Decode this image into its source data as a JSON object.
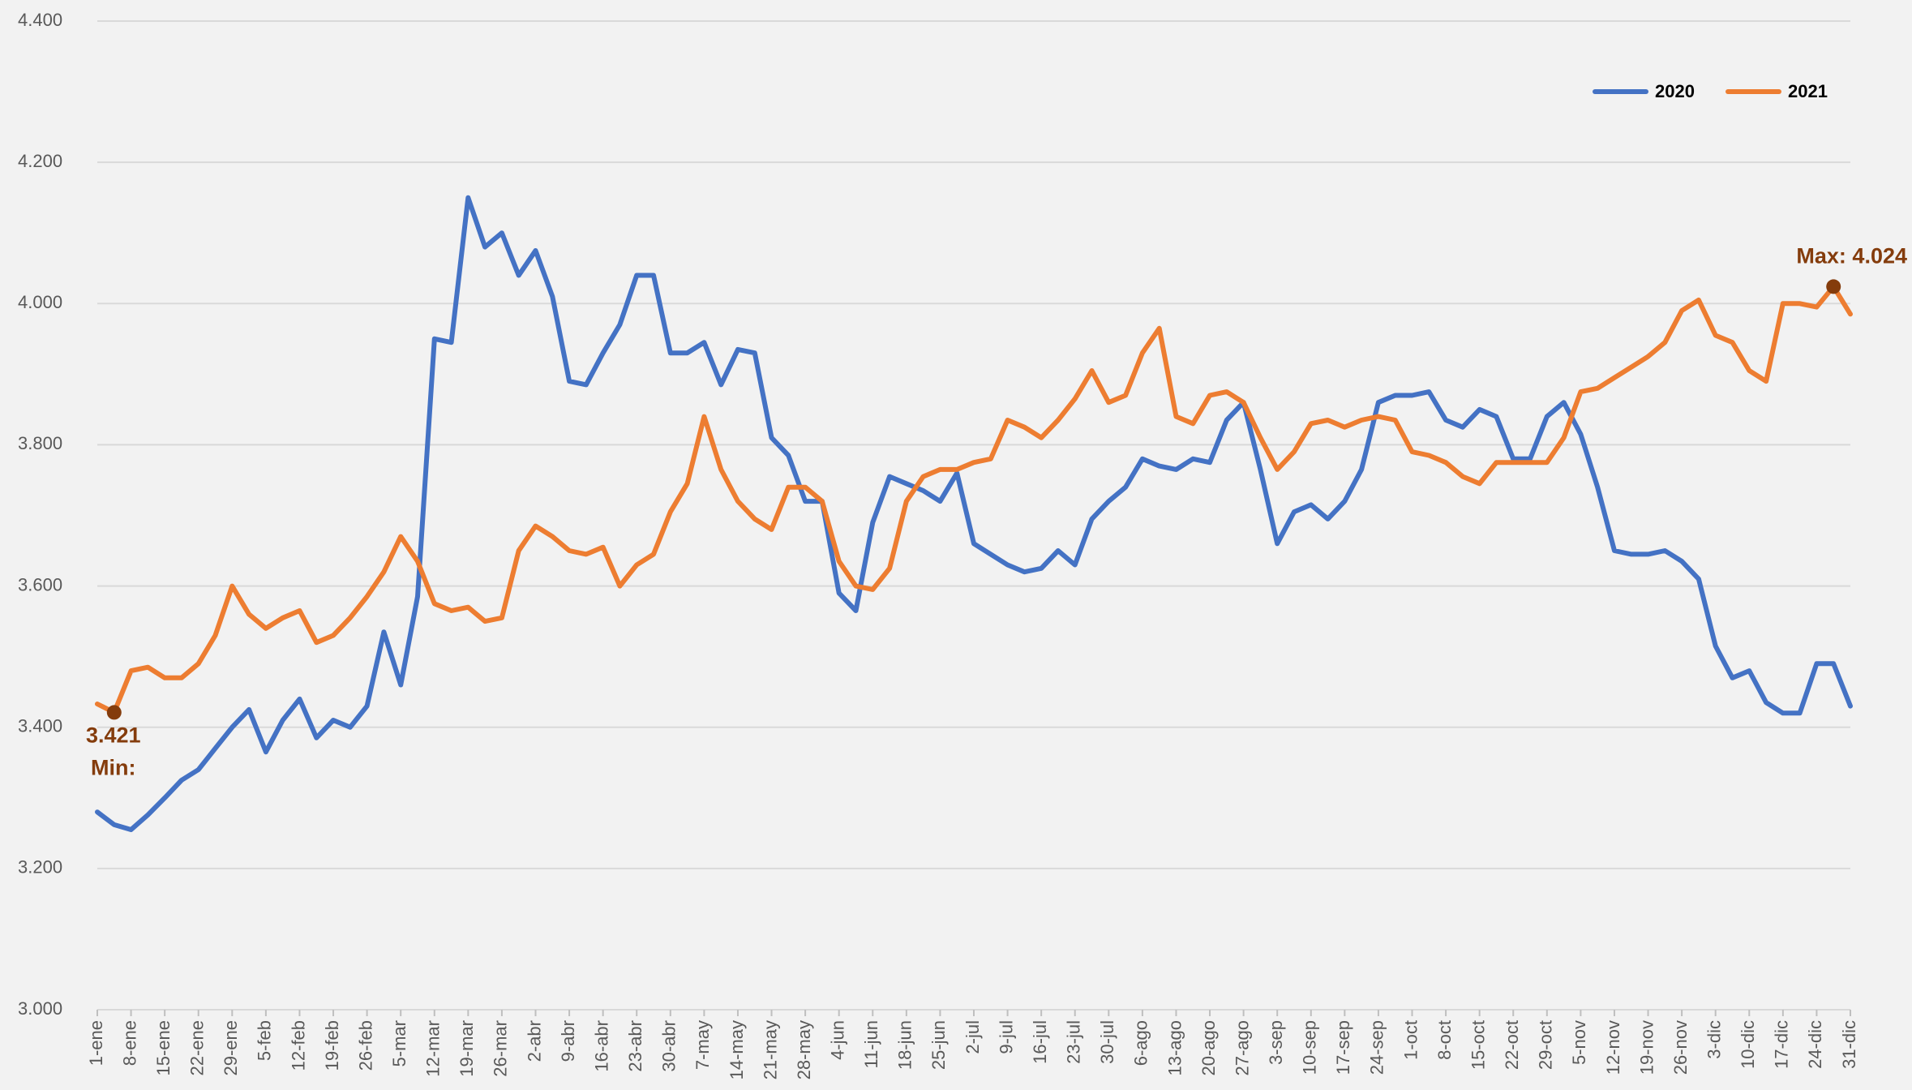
{
  "chart_data": {
    "type": "line",
    "categories": [
      "1-ene",
      null,
      "8-ene",
      null,
      "15-ene",
      null,
      "22-ene",
      null,
      "29-ene",
      null,
      "5-feb",
      null,
      "12-feb",
      null,
      "19-feb",
      null,
      "26-feb",
      null,
      "5-mar",
      null,
      "12-mar",
      null,
      "19-mar",
      null,
      "26-mar",
      null,
      "2-abr",
      null,
      "9-abr",
      null,
      "16-abr",
      null,
      "23-abr",
      null,
      "30-abr",
      null,
      "7-may",
      null,
      "14-may",
      null,
      "21-may",
      null,
      "28-may",
      null,
      "4-jun",
      null,
      "11-jun",
      null,
      "18-jun",
      null,
      "25-jun",
      null,
      "2-jul",
      null,
      "9-jul",
      null,
      "16-jul",
      null,
      "23-jul",
      null,
      "30-jul",
      null,
      "6-ago",
      null,
      "13-ago",
      null,
      "20-ago",
      null,
      "27-ago",
      null,
      "3-sep",
      null,
      "10-sep",
      null,
      "17-sep",
      null,
      "24-sep",
      null,
      "1-oct",
      null,
      "8-oct",
      null,
      "15-oct",
      null,
      "22-oct",
      null,
      "29-oct",
      null,
      "5-nov",
      null,
      "12-nov",
      null,
      "19-nov",
      null,
      "26-nov",
      null,
      "3-dic",
      null,
      "10-dic",
      null,
      "17-dic",
      null,
      "24-dic",
      null,
      "31-dic"
    ],
    "series": [
      {
        "name": "2020",
        "color": "#4472c4",
        "values": [
          3.28,
          3.262,
          3.255,
          3.276,
          3.3,
          3.325,
          3.34,
          3.37,
          3.4,
          3.425,
          3.365,
          3.41,
          3.44,
          3.385,
          3.41,
          3.4,
          3.43,
          3.535,
          3.46,
          3.585,
          3.95,
          3.945,
          4.15,
          4.08,
          4.1,
          4.04,
          4.075,
          4.01,
          3.89,
          3.885,
          3.93,
          3.97,
          4.04,
          4.04,
          3.93,
          3.93,
          3.945,
          3.885,
          3.935,
          3.93,
          3.81,
          3.785,
          3.72,
          3.72,
          3.59,
          3.565,
          3.69,
          3.755,
          3.745,
          3.735,
          3.72,
          3.76,
          3.66,
          3.645,
          3.63,
          3.62,
          3.625,
          3.65,
          3.63,
          3.695,
          3.72,
          3.74,
          3.78,
          3.77,
          3.765,
          3.78,
          3.775,
          3.835,
          3.86,
          3.765,
          3.66,
          3.705,
          3.715,
          3.695,
          3.72,
          3.765,
          3.86,
          3.87,
          3.87,
          3.875,
          3.835,
          3.825,
          3.85,
          3.84,
          3.78,
          3.78,
          3.84,
          3.86,
          3.815,
          3.74,
          3.65,
          3.645,
          3.645,
          3.65,
          3.635,
          3.61,
          3.515,
          3.47,
          3.48,
          3.435,
          3.42,
          3.42,
          3.49,
          3.49,
          3.43
        ]
      },
      {
        "name": "2021",
        "color": "#ed7d31",
        "values": [
          3.433,
          3.421,
          3.48,
          3.485,
          3.47,
          3.47,
          3.49,
          3.53,
          3.6,
          3.56,
          3.54,
          3.555,
          3.565,
          3.52,
          3.53,
          3.555,
          3.585,
          3.62,
          3.67,
          3.635,
          3.575,
          3.565,
          3.57,
          3.55,
          3.555,
          3.65,
          3.685,
          3.67,
          3.65,
          3.645,
          3.655,
          3.6,
          3.63,
          3.645,
          3.705,
          3.745,
          3.84,
          3.765,
          3.72,
          3.695,
          3.68,
          3.74,
          3.74,
          3.72,
          3.635,
          3.6,
          3.595,
          3.625,
          3.72,
          3.755,
          3.765,
          3.765,
          3.775,
          3.78,
          3.835,
          3.825,
          3.81,
          3.835,
          3.865,
          3.905,
          3.86,
          3.87,
          3.93,
          3.965,
          3.84,
          3.83,
          3.87,
          3.875,
          3.86,
          3.81,
          3.765,
          3.79,
          3.83,
          3.835,
          3.825,
          3.835,
          3.84,
          3.835,
          3.79,
          3.785,
          3.775,
          3.755,
          3.745,
          3.775,
          3.775,
          3.775,
          3.775,
          3.81,
          3.875,
          3.88,
          3.895,
          3.91,
          3.925,
          3.945,
          3.99,
          4.005,
          3.955,
          3.945,
          3.905,
          3.89,
          4.0,
          4.0,
          3.995,
          4.024,
          3.985
        ]
      }
    ],
    "ylim": [
      3.0,
      4.4
    ],
    "yticks": [
      {
        "value": 3.0,
        "label": "3.000"
      },
      {
        "value": 3.2,
        "label": "3.200"
      },
      {
        "value": 3.4,
        "label": "3.400"
      },
      {
        "value": 3.6,
        "label": "3.600"
      },
      {
        "value": 3.8,
        "label": "3.800"
      },
      {
        "value": 4.0,
        "label": "4.000"
      },
      {
        "value": 4.2,
        "label": "4.200"
      },
      {
        "value": 4.4,
        "label": "4.400"
      }
    ],
    "grid": true,
    "legend": "top-right",
    "annotations": {
      "series": "2021",
      "max": "Max: 4.024",
      "min_value": "3.421",
      "min": "Min:",
      "color": "#843c0c"
    }
  }
}
